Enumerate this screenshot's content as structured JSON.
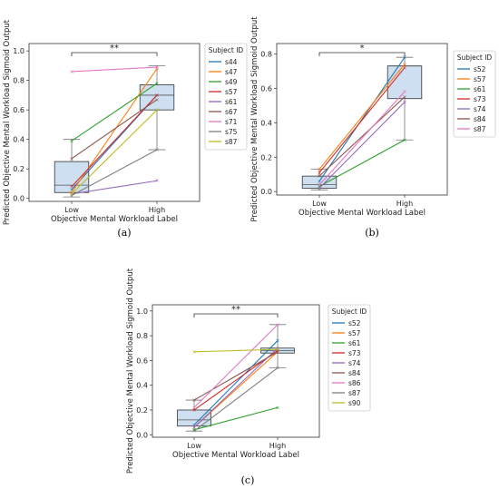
{
  "chart_data": [
    {
      "panel_label": "(a)",
      "type": "box+paired-line",
      "xlabel": "Objective Mental Workload Label",
      "ylabel": "Predicted Objective Mental Workload Sigmoid Output",
      "categories": [
        "Low",
        "High"
      ],
      "yticks": [
        0.0,
        0.2,
        0.4,
        0.6,
        0.8,
        1.0
      ],
      "ylim": [
        -0.02,
        1.05
      ],
      "significance": "**",
      "legend_title": "Subject ID",
      "legend_placement": "outside-right",
      "boxes": [
        {
          "category": "Low",
          "whisker_low": 0.01,
          "q1": 0.04,
          "median": 0.09,
          "q3": 0.25,
          "whisker_high": 0.4
        },
        {
          "category": "High",
          "whisker_low": 0.33,
          "q1": 0.6,
          "median": 0.7,
          "q3": 0.77,
          "whisker_high": 0.9
        }
      ],
      "series": [
        {
          "name": "s44",
          "color": "#1f77b4",
          "values": [
            0.06,
            0.7
          ]
        },
        {
          "name": "s47",
          "color": "#ff7f0e",
          "values": [
            0.04,
            0.88
          ]
        },
        {
          "name": "s49",
          "color": "#2ca02c",
          "values": [
            0.39,
            0.78
          ]
        },
        {
          "name": "s57",
          "color": "#d62728",
          "values": [
            0.08,
            0.7
          ]
        },
        {
          "name": "s61",
          "color": "#9467bd",
          "values": [
            0.03,
            0.12
          ]
        },
        {
          "name": "s67",
          "color": "#8c564b",
          "values": [
            0.27,
            0.67
          ]
        },
        {
          "name": "s71",
          "color": "#e377c2",
          "values": [
            0.86,
            0.89
          ]
        },
        {
          "name": "s75",
          "color": "#7f7f7f",
          "values": [
            0.02,
            0.33
          ]
        },
        {
          "name": "s87",
          "color": "#bcbd22",
          "values": [
            0.03,
            0.6
          ]
        }
      ]
    },
    {
      "panel_label": "(b)",
      "type": "box+paired-line",
      "xlabel": "Objective Mental Workload Label",
      "ylabel": "Predicted Objective Mental Workload Sigmoid Output",
      "categories": [
        "Low",
        "High"
      ],
      "yticks": [
        0.0,
        0.2,
        0.4,
        0.6,
        0.8
      ],
      "ylim": [
        -0.02,
        0.86
      ],
      "significance": "*",
      "legend_title": "Subject ID",
      "legend_placement": "outside-right",
      "boxes": [
        {
          "category": "Low",
          "whisker_low": 0.01,
          "q1": 0.02,
          "median": 0.04,
          "q3": 0.09,
          "whisker_high": 0.13
        },
        {
          "category": "High",
          "whisker_low": 0.3,
          "q1": 0.54,
          "median": 0.73,
          "q3": 0.73,
          "whisker_high": 0.78
        }
      ],
      "series": [
        {
          "name": "s52",
          "color": "#1f77b4",
          "values": [
            0.06,
            0.78
          ]
        },
        {
          "name": "s57",
          "color": "#ff7f0e",
          "values": [
            0.13,
            0.74
          ]
        },
        {
          "name": "s61",
          "color": "#2ca02c",
          "values": [
            0.03,
            0.3
          ]
        },
        {
          "name": "s73",
          "color": "#d62728",
          "values": [
            0.11,
            0.72
          ]
        },
        {
          "name": "s74",
          "color": "#9467bd",
          "values": [
            0.02,
            0.52
          ]
        },
        {
          "name": "s84",
          "color": "#8c564b",
          "values": [
            0.09,
            0.55
          ]
        },
        {
          "name": "s87",
          "color": "#e377c2",
          "values": [
            0.04,
            0.58
          ]
        }
      ]
    },
    {
      "panel_label": "(c)",
      "type": "box+paired-line",
      "xlabel": "Objective Mental Workload Label",
      "ylabel": "Predicted Objective Mental Workload Sigmoid Output",
      "categories": [
        "Low",
        "High"
      ],
      "yticks": [
        0.0,
        0.2,
        0.4,
        0.6,
        0.8,
        1.0
      ],
      "ylim": [
        -0.02,
        1.05
      ],
      "significance": "**",
      "legend_title": "Subject ID",
      "legend_placement": "outside-right",
      "boxes": [
        {
          "category": "Low",
          "whisker_low": 0.03,
          "q1": 0.07,
          "median": 0.12,
          "q3": 0.2,
          "whisker_high": 0.28
        },
        {
          "category": "High",
          "whisker_low": 0.54,
          "q1": 0.66,
          "median": 0.68,
          "q3": 0.7,
          "whisker_high": 0.89
        }
      ],
      "series": [
        {
          "name": "s52",
          "color": "#1f77b4",
          "values": [
            0.08,
            0.76
          ]
        },
        {
          "name": "s57",
          "color": "#ff7f0e",
          "values": [
            0.06,
            0.67
          ]
        },
        {
          "name": "s61",
          "color": "#2ca02c",
          "values": [
            0.04,
            0.22
          ]
        },
        {
          "name": "s73",
          "color": "#d62728",
          "values": [
            0.2,
            0.68
          ]
        },
        {
          "name": "s74",
          "color": "#9467bd",
          "values": [
            0.06,
            0.7
          ]
        },
        {
          "name": "s84",
          "color": "#8c564b",
          "values": [
            0.28,
            0.67
          ]
        },
        {
          "name": "s86",
          "color": "#e377c2",
          "values": [
            0.22,
            0.89
          ]
        },
        {
          "name": "s87",
          "color": "#7f7f7f",
          "values": [
            0.03,
            0.54
          ]
        },
        {
          "name": "s90",
          "color": "#bcbd22",
          "values": [
            0.67,
            0.69
          ]
        }
      ]
    }
  ]
}
